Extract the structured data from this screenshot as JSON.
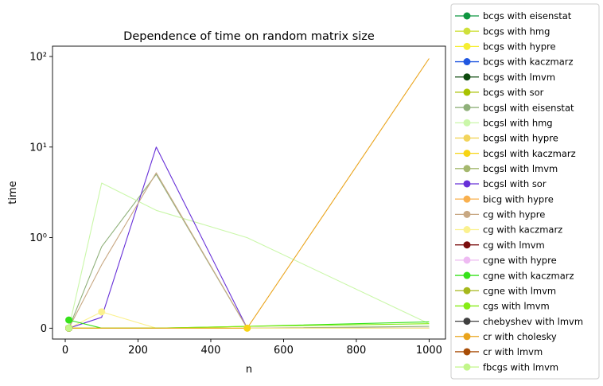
{
  "chart_data": {
    "type": "line",
    "title": "Dependence of time on random matrix size",
    "xlabel": "n",
    "ylabel": "time",
    "x": [
      10,
      100,
      250,
      500,
      1000
    ],
    "xlim": [
      -35,
      1045
    ],
    "x_ticks": [
      0,
      200,
      400,
      600,
      800,
      1000
    ],
    "y_scale": "symlog",
    "y_ticks": [
      {
        "value": 0,
        "label": "0"
      },
      {
        "value": 1,
        "label": "10⁰"
      },
      {
        "value": 10,
        "label": "10¹"
      },
      {
        "value": 100,
        "label": "10²"
      }
    ],
    "ylim": [
      -0.12,
      130
    ],
    "legend_position": "outside-right",
    "grid": false,
    "series": [
      {
        "name": "bcgs with eisenstat",
        "color": "#0f9640",
        "values": [
          0.0,
          null,
          null,
          null,
          null
        ]
      },
      {
        "name": "bcgs with hmg",
        "color": "#cfe03a",
        "values": [
          0.0,
          null,
          null,
          null,
          null
        ]
      },
      {
        "name": "bcgs with hypre",
        "color": "#f6ee32",
        "values": [
          0.0,
          null,
          null,
          null,
          null
        ]
      },
      {
        "name": "bcgs with kaczmarz",
        "color": "#2057e0",
        "values": [
          0.0,
          null,
          null,
          null,
          null
        ]
      },
      {
        "name": "bcgs with lmvm",
        "color": "#0e4a0e",
        "values": [
          0.0,
          null,
          null,
          null,
          null
        ]
      },
      {
        "name": "bcgs with sor",
        "color": "#a8c200",
        "values": [
          0.0,
          null,
          null,
          null,
          null
        ]
      },
      {
        "name": "bcgsl with eisenstat",
        "color": "#8fb07a",
        "values": [
          0.0,
          0.9,
          5.0,
          0.0,
          0.02
        ]
      },
      {
        "name": "bcgsl with hmg",
        "color": "#caf7a9",
        "values": [
          0.0,
          4.0,
          2.0,
          1.0,
          0.05
        ]
      },
      {
        "name": "bcgsl with hypre",
        "color": "#f2d45b",
        "values": [
          0.0,
          0.0,
          0.0,
          0.0,
          0.0
        ]
      },
      {
        "name": "bcgsl with kaczmarz",
        "color": "#f7d414",
        "values": [
          0.0,
          0.0,
          0.0,
          0.0,
          0.0
        ]
      },
      {
        "name": "bcgsl with lmvm",
        "color": "#a5b86e",
        "values": [
          0.0,
          null,
          null,
          null,
          null
        ]
      },
      {
        "name": "bcgsl with sor",
        "color": "#6730d8",
        "values": [
          0.0,
          0.12,
          10.0,
          0.0,
          0.0
        ]
      },
      {
        "name": "bicg with hypre",
        "color": "#f9b04e",
        "values": [
          0.0,
          null,
          null,
          null,
          null
        ]
      },
      {
        "name": "cg with hypre",
        "color": "#c8a883",
        "values": [
          0.0,
          0.7,
          5.2,
          0.0,
          0.0
        ]
      },
      {
        "name": "cg with kaczmarz",
        "color": "#fbf18f",
        "values": [
          0.0,
          0.18,
          0.0,
          0.0,
          0.0
        ]
      },
      {
        "name": "cg with lmvm",
        "color": "#7a0e0e",
        "values": [
          0.0,
          null,
          null,
          null,
          null
        ]
      },
      {
        "name": "cgne with hypre",
        "color": "#eebaf2",
        "values": [
          0.0,
          null,
          null,
          null,
          null
        ]
      },
      {
        "name": "cgne with kaczmarz",
        "color": "#36e21a",
        "values": [
          0.09,
          0.0,
          0.0,
          0.02,
          0.07
        ]
      },
      {
        "name": "cgne with lmvm",
        "color": "#a6b81c",
        "values": [
          0.0,
          null,
          null,
          null,
          null
        ]
      },
      {
        "name": "cgs with lmvm",
        "color": "#86ec14",
        "values": [
          0.0,
          0.0,
          0.0,
          0.02,
          0.05
        ]
      },
      {
        "name": "chebyshev with lmvm",
        "color": "#404040",
        "values": [
          0.0,
          null,
          null,
          null,
          null
        ]
      },
      {
        "name": "cr with cholesky",
        "color": "#eaa41c",
        "values": [
          0.0,
          null,
          null,
          0.0,
          95.0
        ]
      },
      {
        "name": "cr with lmvm",
        "color": "#a84d06",
        "values": [
          0.0,
          null,
          null,
          null,
          null
        ]
      },
      {
        "name": "fbcgs with lmvm",
        "color": "#c2f68a",
        "values": [
          0.0,
          null,
          null,
          null,
          null
        ]
      }
    ]
  }
}
